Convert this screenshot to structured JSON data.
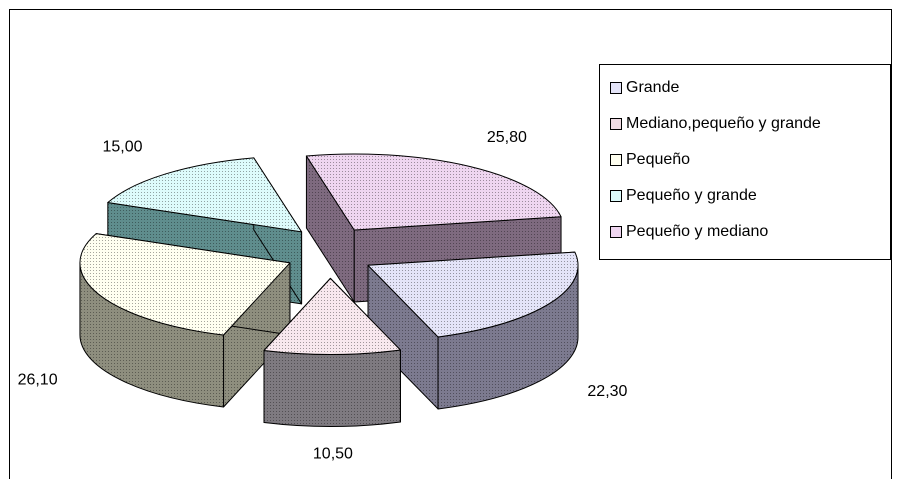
{
  "chart_data": {
    "type": "pie",
    "style": "3d-exploded",
    "categories": [
      "Grande",
      "Mediano,pequeño y grande",
      "Pequeño",
      "Pequeño y grande",
      "Pequeño y mediano"
    ],
    "values": [
      22.3,
      10.5,
      26.1,
      15.0,
      25.8
    ],
    "value_labels": [
      "22,30",
      "10,50",
      "26,10",
      "15,00",
      "25,80"
    ],
    "colors": [
      "#e4e4f8",
      "#f8e8ee",
      "#fffff0",
      "#ddfbfb",
      "#efd6f0"
    ],
    "side_colors": [
      "#7c7a8f",
      "#7e7a80",
      "#8e8e7e",
      "#5f8d8d",
      "#7e6a7f"
    ],
    "legend_position": "right",
    "title": "",
    "legend": [
      {
        "label": "Grande",
        "color": "#e4e4f8"
      },
      {
        "label": "Mediano,pequeño y grande",
        "color": "#f0dce4"
      },
      {
        "label": "Pequeño",
        "color": "#fffff0"
      },
      {
        "label": "Pequeño y grande",
        "color": "#ddfbfb"
      },
      {
        "label": "Pequeño y mediano",
        "color": "#efd6f0"
      }
    ]
  }
}
